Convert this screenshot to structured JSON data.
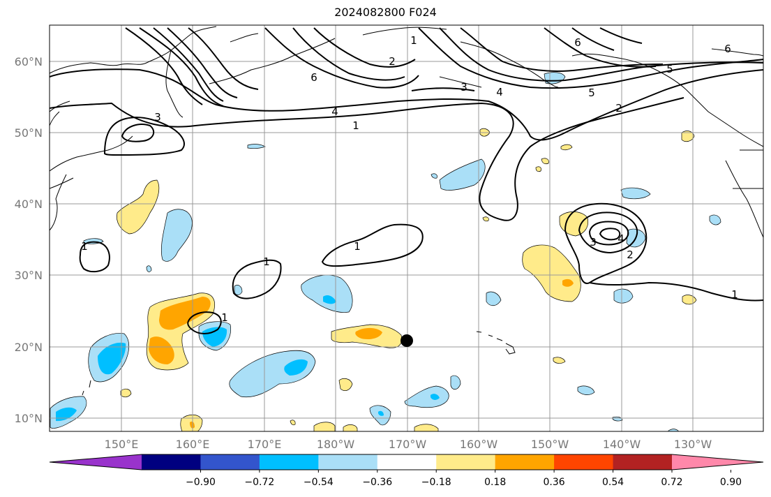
{
  "title": "2024082800 F024",
  "lat_labels": [
    "10°N",
    "20°N",
    "30°N",
    "40°N",
    "50°N",
    "60°N"
  ],
  "lon_labels": [
    "150°E",
    "160°E",
    "170°E",
    "180°W",
    "170°W",
    "160°W",
    "150°W",
    "140°W",
    "130°W"
  ],
  "contour_labels": [
    "1",
    "1",
    "1",
    "1",
    "1",
    "1",
    "1",
    "2",
    "2",
    "2",
    "3",
    "3",
    "3",
    "4",
    "4",
    "4",
    "5",
    "5",
    "6",
    "6",
    "6"
  ],
  "colorbar": {
    "ticks": [
      "−0.90",
      "−0.72",
      "−0.54",
      "−0.36",
      "−0.18",
      "0.18",
      "0.36",
      "0.54",
      "0.72",
      "0.90"
    ],
    "colors": [
      "#9933cc",
      "#000080",
      "#3355cc",
      "#00bfff",
      "#aadff7",
      "#ffffff",
      "#ffeb8a",
      "#ffa500",
      "#ff4500",
      "#b22222",
      "#ff88aa"
    ]
  },
  "legend_colors": {
    "neg_light": "#aadff7",
    "neg_mid": "#00bfff",
    "pos_light": "#ffeb8a",
    "pos_mid": "#ffa500",
    "pos_strong": "#ff4500"
  }
}
